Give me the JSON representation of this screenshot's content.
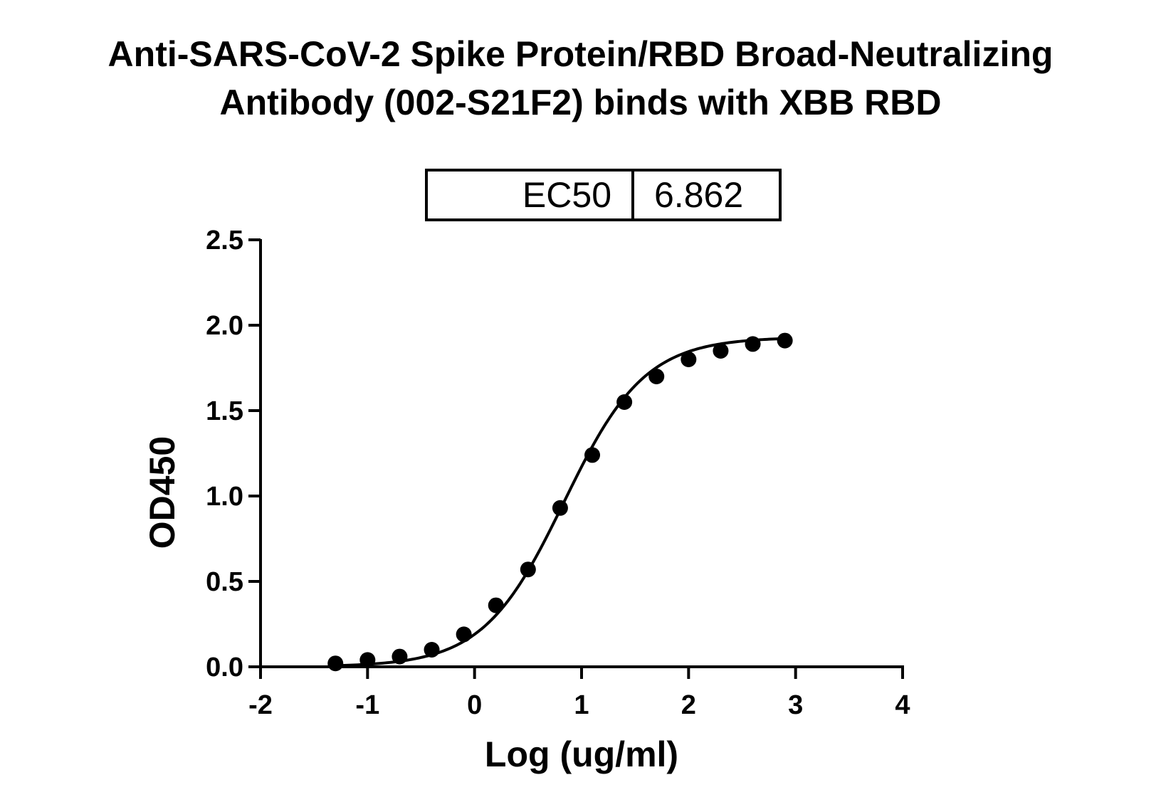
{
  "chart_data": {
    "type": "scatter",
    "title_line1": "Anti-SARS-CoV-2 Spike Protein/RBD Broad-Neutralizing",
    "title_line2": "Antibody (002-S21F2) binds with XBB RBD",
    "xlabel": "Log (ug/ml)",
    "ylabel": "OD450",
    "xlim": [
      -2,
      4
    ],
    "ylim": [
      0,
      2.5
    ],
    "xticks": [
      "-2",
      "-1",
      "0",
      "1",
      "2",
      "3",
      "4"
    ],
    "yticks": [
      "0.0",
      "0.5",
      "1.0",
      "1.5",
      "2.0",
      "2.5"
    ],
    "ec50_label": "EC50",
    "ec50_value": "6.862",
    "grid": false,
    "series": [
      {
        "x": [
          -1.3,
          -1.0,
          -0.7,
          -0.4,
          -0.1,
          0.2,
          0.5,
          0.8,
          1.1,
          1.4,
          1.7,
          2.0,
          2.3,
          2.6,
          2.9
        ],
        "y": [
          0.02,
          0.04,
          0.06,
          0.1,
          0.19,
          0.36,
          0.57,
          0.93,
          1.24,
          1.55,
          1.7,
          1.8,
          1.85,
          1.89,
          1.91
        ]
      }
    ],
    "fit_curve": {
      "bottom": 0.0,
      "top": 1.93,
      "log_ec50": 0.836,
      "hill_slope": 1.15
    }
  }
}
